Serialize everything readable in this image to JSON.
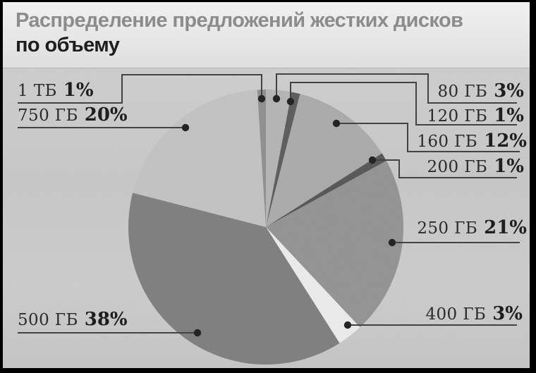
{
  "header": {
    "title_line1": "Распределение предложений жестких дисков",
    "title_line2": "по объему"
  },
  "colors": {
    "frame": "#000000",
    "title_background": "#e9e9e9",
    "title_line1_color": "#8c8c8c",
    "title_line2_color": "#1d1d1d",
    "chart_background": "#c9c9c9",
    "leader_line": "#3d3d3d",
    "dot": "#1c1c1c",
    "label_text": "#2b2b2b"
  },
  "chart_data": {
    "type": "pie",
    "title": "Распределение предложений жестких дисков по объему",
    "value_unit": "%",
    "direction": "clockwise",
    "start_angle_deg": 0,
    "legend_position": "callouts",
    "center": [
      373,
      225
    ],
    "radius": 195,
    "categories": [
      "80 ГБ",
      "120 ГБ",
      "160 ГБ",
      "200 ГБ",
      "250 ГБ",
      "400 ГБ",
      "500 ГБ",
      "750 ГБ",
      "1 ТБ"
    ],
    "values": [
      3,
      1,
      12,
      1,
      21,
      3,
      38,
      20,
      1
    ],
    "slices": [
      {
        "label": "80 ГБ",
        "percent": 3,
        "percent_label": "3%",
        "color": "#b4b4b4",
        "dot": [
          388,
          43
        ],
        "line": [
          [
            729,
            49
          ],
          [
            603,
            49
          ],
          [
            603,
            8
          ],
          [
            388,
            8
          ],
          [
            388,
            43
          ]
        ]
      },
      {
        "label": "120 ГБ",
        "percent": 1,
        "percent_label": "1%",
        "color": "#5a5a5a",
        "dot": [
          408,
          47
        ],
        "line": [
          [
            729,
            80
          ],
          [
            586,
            80
          ],
          [
            586,
            20
          ],
          [
            408,
            20
          ],
          [
            408,
            47
          ]
        ]
      },
      {
        "label": "160 ГБ",
        "percent": 12,
        "percent_label": "12%",
        "color": "#aaaaaa",
        "dot": [
          473,
          78
        ],
        "line": [
          [
            733,
            118
          ],
          [
            574,
            118
          ],
          [
            574,
            78
          ],
          [
            473,
            78
          ]
        ]
      },
      {
        "label": "200 ГБ",
        "percent": 1,
        "percent_label": "1%",
        "color": "#545454",
        "dot": [
          524,
          130
        ],
        "line": [
          [
            729,
            155
          ],
          [
            562,
            155
          ],
          [
            562,
            130
          ],
          [
            524,
            130
          ]
        ]
      },
      {
        "label": "250 ГБ",
        "percent": 21,
        "percent_label": "21%",
        "color": "#929292",
        "dot": [
          552,
          247
        ],
        "line": [
          [
            733,
            247
          ],
          [
            552,
            247
          ]
        ]
      },
      {
        "label": "400 ГБ",
        "percent": 3,
        "percent_label": "3%",
        "color": "#ececec",
        "dot": [
          489,
          364
        ],
        "line": [
          [
            729,
            364
          ],
          [
            489,
            364
          ]
        ]
      },
      {
        "label": "500 ГБ",
        "percent": 38,
        "percent_label": "38%",
        "color": "#7d7d7d",
        "dot": [
          276,
          375
        ],
        "line": [
          [
            21,
            375
          ],
          [
            276,
            375
          ]
        ]
      },
      {
        "label": "750 ГБ",
        "percent": 20,
        "percent_label": "20%",
        "color": "#c2c2c2",
        "dot": [
          259,
          84
        ],
        "line": [
          [
            21,
            84
          ],
          [
            259,
            84
          ]
        ]
      },
      {
        "label": "1 ТБ",
        "percent": 1,
        "percent_label": "1%",
        "color": "#8e8e8e",
        "dot": [
          367,
          43
        ],
        "line": [
          [
            21,
            49
          ],
          [
            169,
            49
          ],
          [
            169,
            9
          ],
          [
            367,
            9
          ],
          [
            367,
            43
          ]
        ]
      }
    ]
  }
}
